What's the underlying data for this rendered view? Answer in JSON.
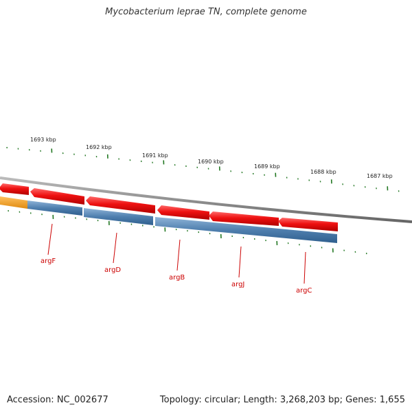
{
  "title": "Mycobacterium leprae TN, complete genome",
  "scale_ticks": [
    {
      "label": "1693 kbp"
    },
    {
      "label": "1692 kbp"
    },
    {
      "label": "1691 kbp"
    },
    {
      "label": "1690 kbp"
    },
    {
      "label": "1689 kbp"
    },
    {
      "label": "1688 kbp"
    },
    {
      "label": "1687 kbp"
    }
  ],
  "genes": [
    {
      "label": "argF"
    },
    {
      "label": "argD"
    },
    {
      "label": "argB"
    },
    {
      "label": "argJ"
    },
    {
      "label": "argC"
    }
  ],
  "colors": {
    "backbone": "#888888",
    "forward_features": "#ee1111",
    "cds_track": "#4f7fae",
    "rna_feature": "#f0a020",
    "ticks": "#227722",
    "gene_labels": "#cc0000"
  },
  "footer": {
    "accession": "Accession: NC_002677",
    "summary": "Topology: circular; Length: 3,268,203 bp; Genes: 1,655"
  }
}
